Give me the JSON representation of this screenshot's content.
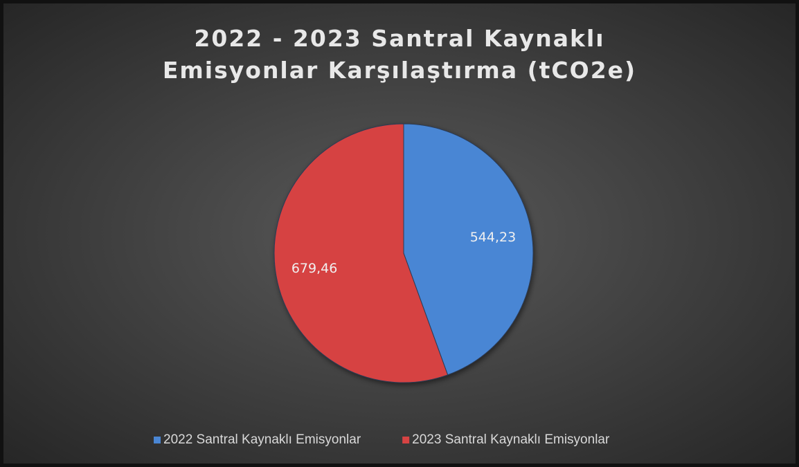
{
  "chart_data": {
    "type": "pie",
    "title": "2022 - 2023 Santral Kaynaklı Emisyonlar Karşılaştırma (tCO2e)",
    "categories": [
      "2022 Santral Kaynaklı Emisyonlar",
      "2023 Santral Kaynaklı Emisyonlar"
    ],
    "values": [
      544.23,
      679.46
    ],
    "value_labels": [
      "544,23",
      "679,46"
    ],
    "colors": [
      "#4a86d4",
      "#d64343"
    ],
    "legend": "bottom"
  }
}
